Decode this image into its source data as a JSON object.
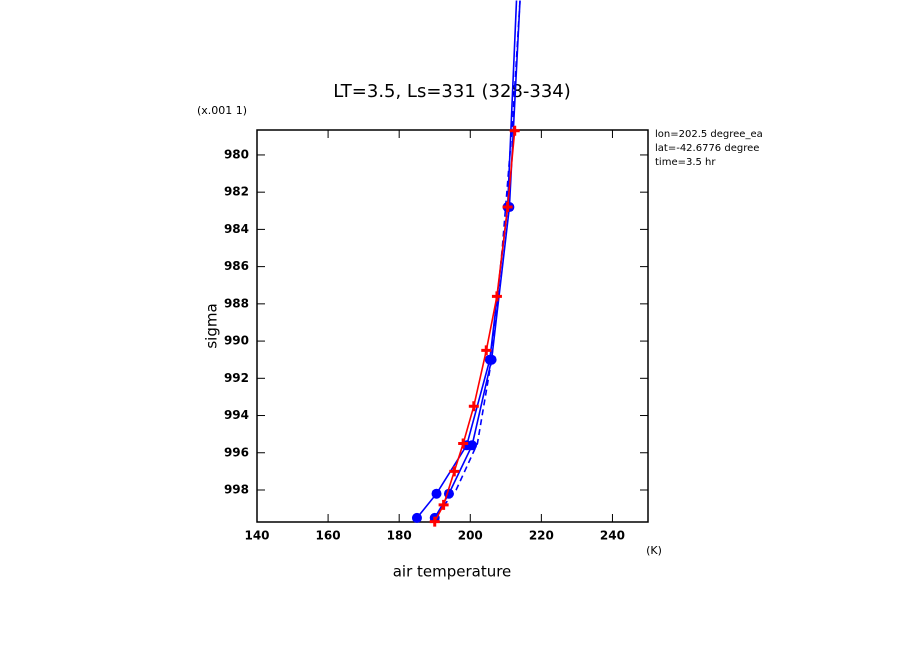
{
  "chart_data": {
    "type": "line",
    "title": "LT=3.5, Ls=331 (328-334)",
    "x_label": "air temperature",
    "y_label": "sigma",
    "x_units": "(K)",
    "y_multiplier": "(x.001 1)",
    "annotations": [
      "lon=202.5 degree_ea",
      "lat=-42.6776 degree",
      "time=3.5 hr"
    ],
    "xlim": [
      140,
      250
    ],
    "xticks": [
      140,
      160,
      180,
      200,
      220,
      240
    ],
    "ylim": [
      999.72,
      978.66
    ],
    "yticks": [
      980,
      982,
      984,
      986,
      988,
      990,
      992,
      994,
      996,
      998
    ],
    "series": [
      {
        "color": "#0000ff",
        "marker": "circle",
        "dash": false,
        "x": [
          185,
          190.5,
          199,
          205.5,
          210.5,
          213
        ],
        "values": [
          999.5,
          998.2,
          995.6,
          991,
          982.8,
          971.7
        ]
      },
      {
        "color": "#0000ff",
        "marker": "circle",
        "dash": false,
        "x": [
          190,
          194,
          200.5,
          206,
          211,
          214
        ],
        "values": [
          999.5,
          998.2,
          995.6,
          991,
          982.8,
          971.7
        ]
      },
      {
        "color": "#0000ff",
        "marker": "none",
        "dash": true,
        "x": [
          189,
          196,
          202,
          206,
          209,
          212,
          214
        ],
        "values": [
          999.7,
          998,
          995.5,
          991,
          985,
          978,
          971.7
        ]
      },
      {
        "color": "#ff0000",
        "marker": "plus",
        "dash": false,
        "x": [
          190,
          192.5,
          195.5,
          198,
          201,
          204.5,
          207.5,
          210.5,
          212.5
        ],
        "values": [
          999.7,
          998.8,
          997,
          995.5,
          993.5,
          990.5,
          987.6,
          982.8,
          978.7
        ]
      }
    ]
  }
}
